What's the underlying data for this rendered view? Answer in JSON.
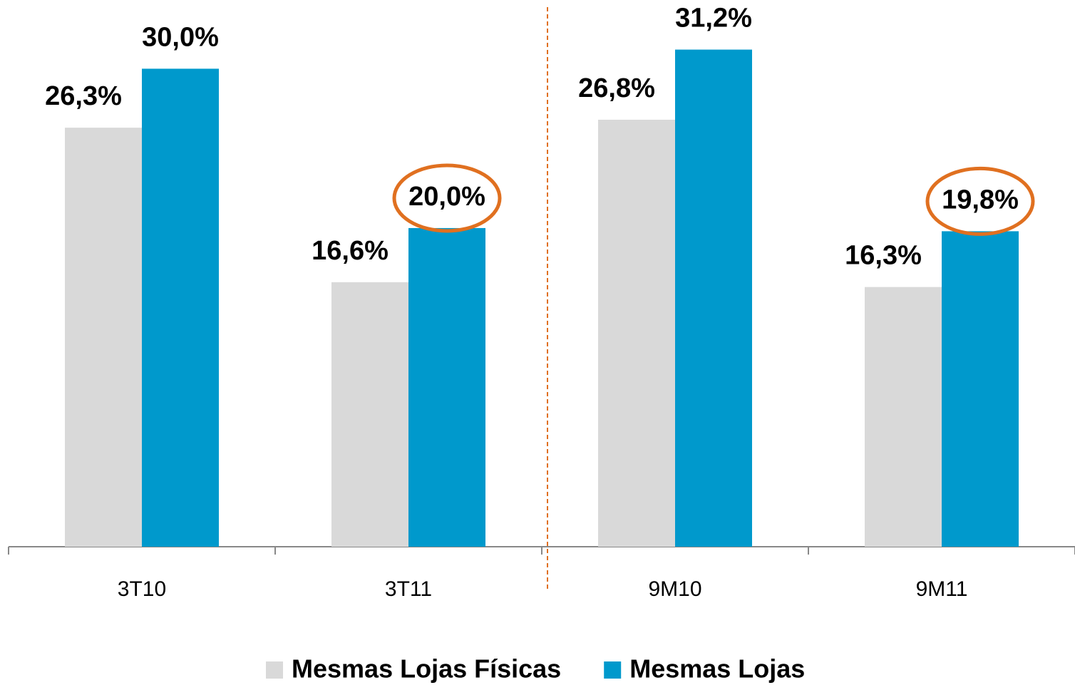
{
  "chart_data": {
    "type": "bar",
    "categories": [
      "3T10",
      "3T11",
      "9M10",
      "9M11"
    ],
    "series": [
      {
        "name": "Mesmas Lojas Físicas",
        "color": "#d9d9d9",
        "values": [
          26.3,
          16.6,
          26.8,
          16.3
        ],
        "value_labels": [
          "26,3%",
          "16,6%",
          "26,8%",
          "16,3%"
        ]
      },
      {
        "name": "Mesmas Lojas",
        "color": "#0099cc",
        "values": [
          30.0,
          20.0,
          31.2,
          19.8
        ],
        "value_labels": [
          "30,0%",
          "20,0%",
          "31,2%",
          "19,8%"
        ]
      }
    ],
    "ylim": [
      0,
      34
    ],
    "legend": "bottom"
  }
}
